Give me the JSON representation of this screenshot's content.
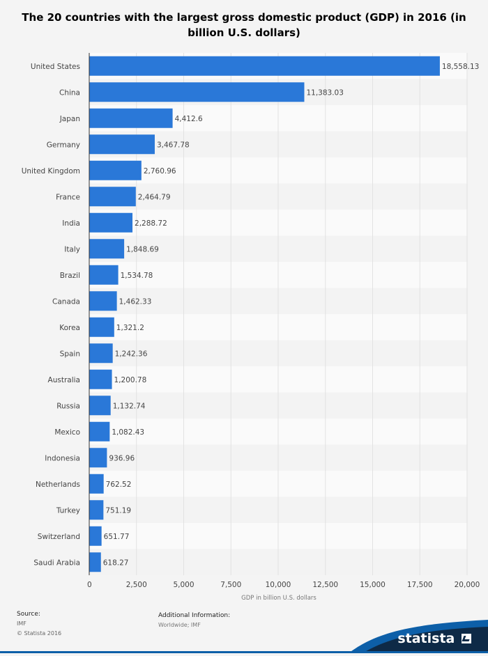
{
  "title": "The 20 countries with the largest gross domestic product (GDP) in 2016 (in billion U.S. dollars)",
  "chart_data": {
    "type": "bar",
    "orientation": "horizontal",
    "categories": [
      "United States",
      "China",
      "Japan",
      "Germany",
      "United Kingdom",
      "France",
      "India",
      "Italy",
      "Brazil",
      "Canada",
      "Korea",
      "Spain",
      "Australia",
      "Russia",
      "Mexico",
      "Indonesia",
      "Netherlands",
      "Turkey",
      "Switzerland",
      "Saudi Arabia"
    ],
    "values": [
      18558.13,
      11383.03,
      4412.6,
      3467.78,
      2760.96,
      2464.79,
      2288.72,
      1848.69,
      1534.78,
      1462.33,
      1321.2,
      1242.36,
      1200.78,
      1132.74,
      1082.43,
      936.96,
      762.52,
      751.19,
      651.77,
      618.27
    ],
    "value_labels": [
      "18,558.13",
      "11,383.03",
      "4,412.6",
      "3,467.78",
      "2,760.96",
      "2,464.79",
      "2,288.72",
      "1,848.69",
      "1,534.78",
      "1,462.33",
      "1,321.2",
      "1,242.36",
      "1,200.78",
      "1,132.74",
      "1,082.43",
      "936.96",
      "762.52",
      "751.19",
      "651.77",
      "618.27"
    ],
    "xlabel": "GDP in billion U.S. dollars",
    "ylabel": "",
    "xlim": [
      0,
      20000
    ],
    "x_ticks": [
      0,
      2500,
      5000,
      7500,
      10000,
      12500,
      15000,
      17500,
      20000
    ],
    "x_tick_labels": [
      "0",
      "2,500",
      "5,000",
      "7,500",
      "10,000",
      "12,500",
      "15,000",
      "17,500",
      "20,000"
    ],
    "grid": true,
    "bar_color": "#2a78d8"
  },
  "footer": {
    "source_label": "Source:",
    "source_value": "IMF",
    "copyright": "© Statista 2016",
    "info_label": "Additional Information:",
    "info_value": "Worldwide; IMF",
    "brand": "statista"
  },
  "colors": {
    "background": "#f4f4f4",
    "stripe_light": "#fafafa",
    "stripe_dark": "#f3f3f3",
    "brand_navy": "#0e2a47",
    "brand_blue": "#0d5fa8"
  }
}
